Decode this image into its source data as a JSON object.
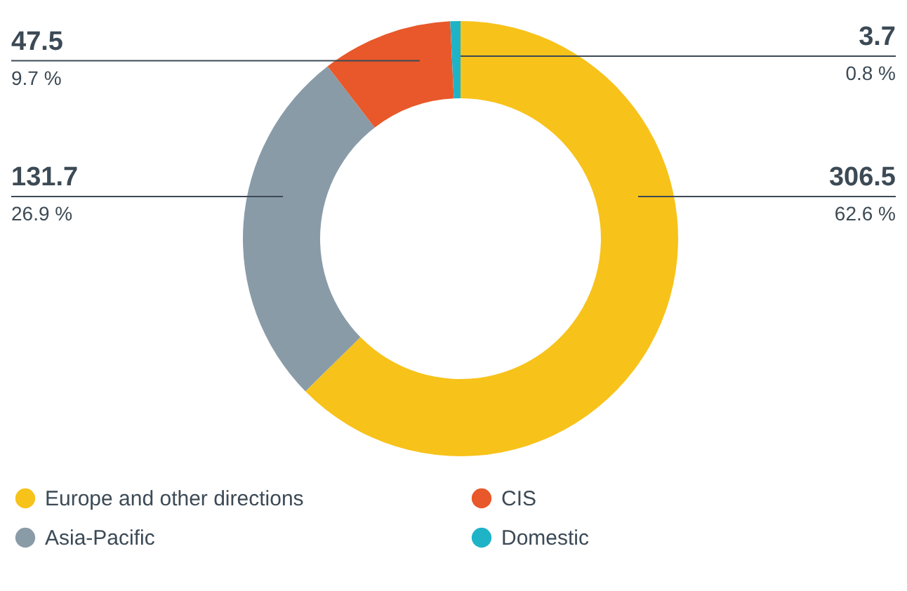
{
  "chart_data": {
    "type": "donut",
    "categories": [
      "Europe and other directions",
      "Asia-Pacific",
      "CIS",
      "Domestic"
    ],
    "values": [
      306.5,
      131.7,
      47.5,
      3.7
    ],
    "colors": [
      "#f7c21a",
      "#8a9ba8",
      "#e8582a",
      "#1fb3c8"
    ],
    "data_labels": true,
    "annotations": [
      "62.6 %",
      "26.9 %",
      "9.7 %",
      "0.8 %"
    ],
    "legend": "bottom"
  }
}
